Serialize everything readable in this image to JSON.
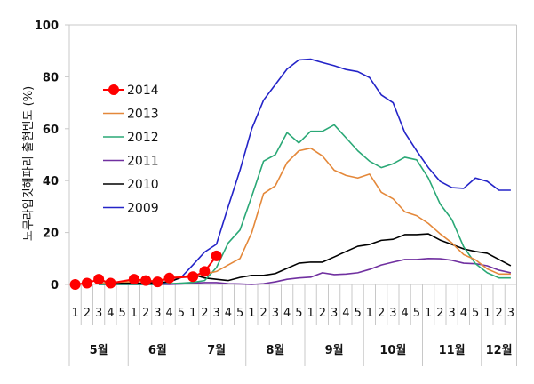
{
  "chart_data": {
    "type": "line",
    "title": "",
    "xlabel": "",
    "ylabel": "노무라입깃해파리 출현빈도 (%)",
    "ylim": [
      0,
      100
    ],
    "yticks": [
      0,
      20,
      40,
      60,
      80,
      100
    ],
    "grid": false,
    "legend_position": "upper-left inside plot",
    "months": [
      {
        "label": "5월",
        "count": 5
      },
      {
        "label": "6월",
        "count": 5
      },
      {
        "label": "7월",
        "count": 5
      },
      {
        "label": "8월",
        "count": 5
      },
      {
        "label": "9월",
        "count": 5
      },
      {
        "label": "10월",
        "count": 5
      },
      {
        "label": "11월",
        "count": 5
      },
      {
        "label": "12월",
        "count": 3
      }
    ],
    "categories": [
      "1",
      "2",
      "3",
      "4",
      "5",
      "1",
      "2",
      "3",
      "4",
      "5",
      "1",
      "2",
      "3",
      "4",
      "5",
      "1",
      "2",
      "3",
      "4",
      "5",
      "1",
      "2",
      "3",
      "4",
      "5",
      "1",
      "2",
      "3",
      "4",
      "5",
      "1",
      "2",
      "3",
      "4",
      "5",
      "1",
      "2",
      "3"
    ],
    "series": [
      {
        "name": "2014",
        "color": "#ff0000",
        "marker": true,
        "values": [
          0,
          0.5,
          2,
          0.5,
          null,
          2,
          1.5,
          1,
          2.5,
          null,
          3,
          5,
          11,
          null,
          null,
          null,
          null,
          null,
          null,
          null,
          null,
          null,
          null,
          null,
          null,
          null,
          null,
          null,
          null,
          null,
          null,
          null,
          null,
          null,
          null,
          null,
          null,
          null
        ]
      },
      {
        "name": "2013",
        "color": "#e4883a",
        "marker": false,
        "values": [
          null,
          null,
          0.5,
          0.5,
          1,
          1,
          1.5,
          1.5,
          2.5,
          3,
          3.5,
          4,
          5,
          7.5,
          10,
          20,
          35,
          38,
          47,
          51.5,
          52.5,
          49.5,
          44,
          42,
          41,
          42.5,
          35.5,
          33,
          28,
          26.5,
          23.5,
          19.5,
          16,
          11.5,
          9.5,
          6,
          4,
          4
        ]
      },
      {
        "name": "2012",
        "color": "#2aa876",
        "marker": false,
        "values": [
          null,
          null,
          0,
          0,
          0,
          0,
          0,
          0,
          0.3,
          0.5,
          0.8,
          1.5,
          6.5,
          16,
          21,
          34,
          47.5,
          50,
          58.5,
          54.5,
          59,
          59,
          61.5,
          56.5,
          51.5,
          47.5,
          45,
          46.5,
          49,
          48,
          41,
          31,
          25,
          14.5,
          8,
          4.5,
          2.5,
          2.5
        ]
      },
      {
        "name": "2011",
        "color": "#7030a0",
        "marker": false,
        "values": [
          null,
          null,
          0,
          0,
          0,
          0,
          0,
          0,
          0,
          0.2,
          0.5,
          0.7,
          0.7,
          0.3,
          0.2,
          0,
          0.3,
          1,
          2,
          2.5,
          2.8,
          4.5,
          3.8,
          4,
          4.5,
          5.8,
          7.5,
          8.6,
          9.6,
          9.6,
          10,
          9.9,
          9.3,
          8.2,
          8,
          7.2,
          5.5,
          4.5
        ]
      },
      {
        "name": "2010",
        "color": "#000000",
        "marker": false,
        "values": [
          null,
          null,
          0.5,
          0.5,
          0.5,
          0.5,
          0.5,
          0.7,
          1,
          2.7,
          3.8,
          2.5,
          2,
          1.5,
          2.7,
          3.5,
          3.5,
          4.2,
          6.2,
          8.2,
          8.6,
          8.6,
          10.6,
          12.7,
          14.7,
          15.4,
          17,
          17.4,
          19.2,
          19.2,
          19.5,
          17.1,
          15.4,
          13.7,
          12.7,
          12,
          9.6,
          7.2
        ]
      },
      {
        "name": "2009",
        "color": "#2424c8",
        "marker": false,
        "values": [
          null,
          null,
          0,
          0,
          0,
          0,
          0,
          0,
          1,
          2.7,
          7.5,
          12.5,
          15.5,
          30,
          44,
          60,
          71,
          77,
          83,
          86.5,
          86.8,
          85.5,
          84.3,
          82.8,
          82,
          79.7,
          73,
          70,
          58.5,
          51.5,
          45,
          39.7,
          37.3,
          37,
          41,
          39.7,
          36.3,
          36.3
        ]
      }
    ]
  }
}
